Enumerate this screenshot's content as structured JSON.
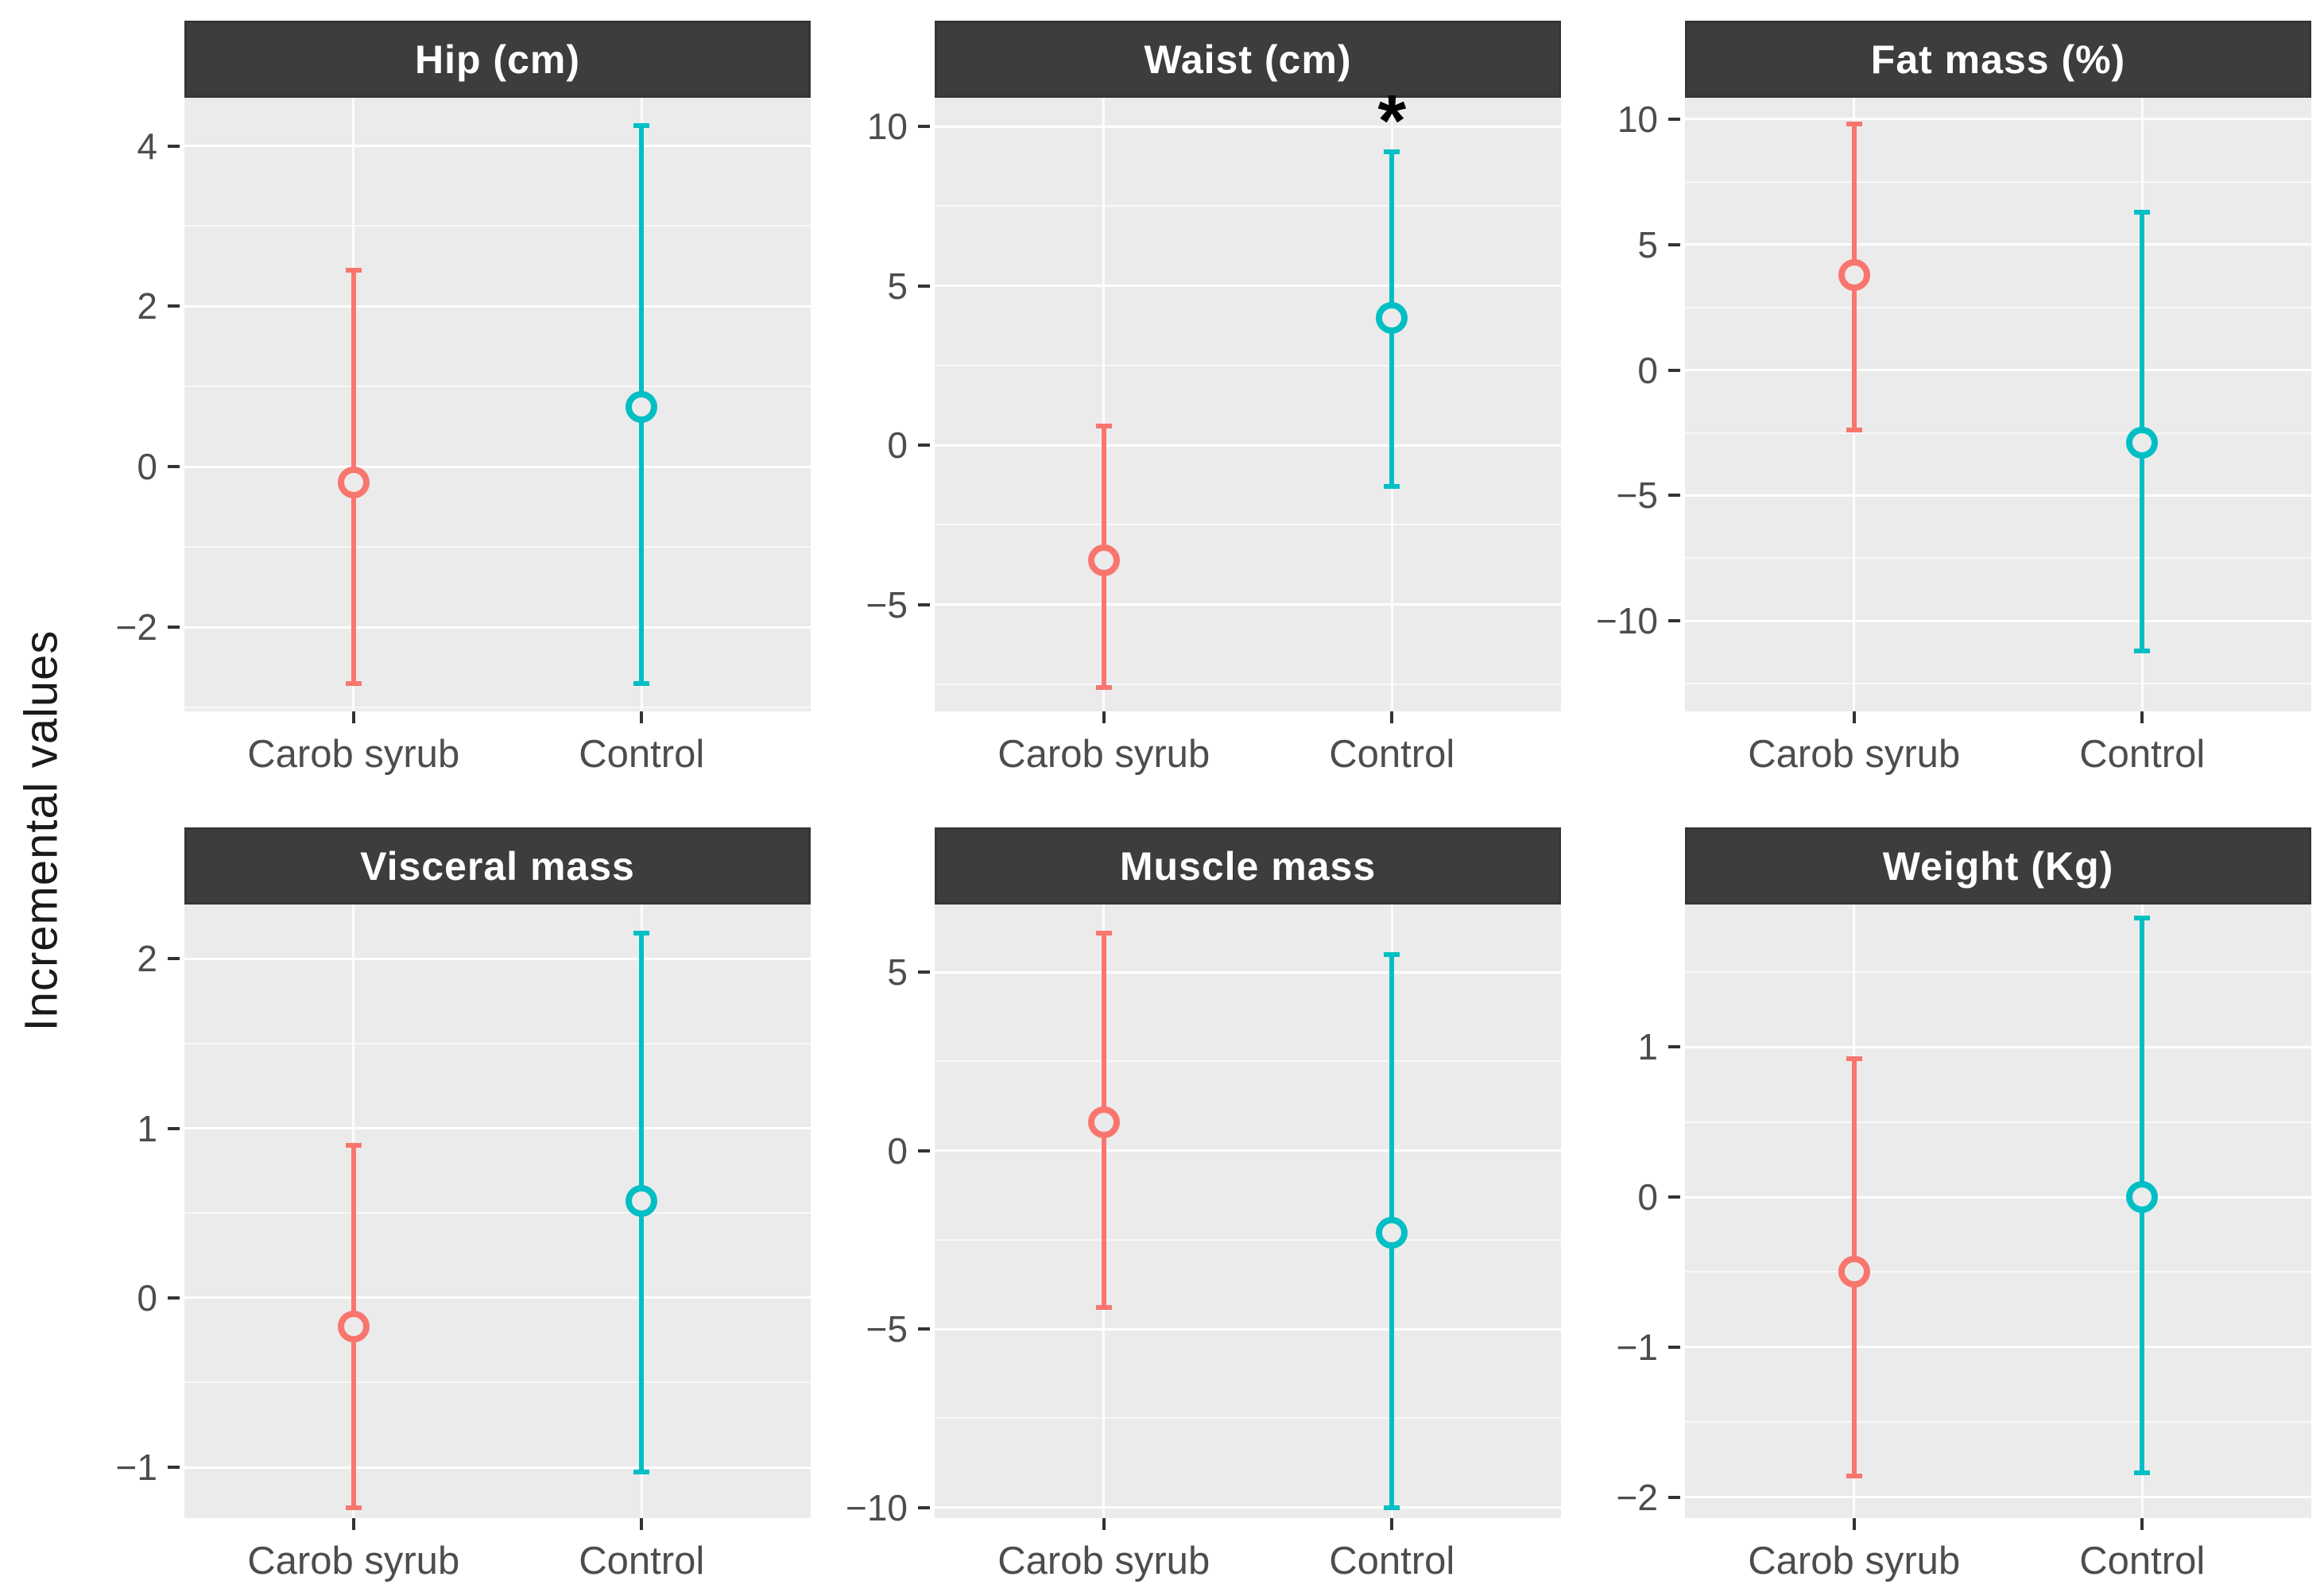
{
  "figure": {
    "ylabel": "Incremental values",
    "x_categories": [
      "Carob syrub",
      "Control"
    ],
    "colors": {
      "carob_syrub": "#F8766D",
      "control": "#00BFC4",
      "strip_bg": "#3D3D3D",
      "strip_text": "#FFFFFF",
      "panel_bg": "#EBEBEB",
      "grid": "#FFFFFF",
      "axis_text": "#4D4D4D",
      "tick_mark": "#333333",
      "annotation": "#000000"
    }
  },
  "chart_data": {
    "type": "pointrange",
    "title": "",
    "ylabel": "Incremental values",
    "categories": [
      "Carob syrub",
      "Control"
    ],
    "legend": "none",
    "grid": "on",
    "series_colors": {
      "Carob syrub": "#F8766D",
      "Control": "#00BFC4"
    },
    "facets": [
      {
        "title": "Hip (cm)",
        "ylim": [
          -3.05,
          4.6
        ],
        "yticks": [
          4,
          2,
          0,
          -2
        ],
        "points": [
          {
            "group": "Carob syrub",
            "y": -0.2,
            "ymin": -2.7,
            "ymax": 2.45
          },
          {
            "group": "Control",
            "y": 0.75,
            "ymin": -2.7,
            "ymax": 4.25
          }
        ],
        "annotation": null
      },
      {
        "title": "Waist (cm)",
        "ylim": [
          -8.35,
          10.9
        ],
        "yticks": [
          10,
          5,
          0,
          -5
        ],
        "points": [
          {
            "group": "Carob syrub",
            "y": -3.6,
            "ymin": -7.6,
            "ymax": 0.6
          },
          {
            "group": "Control",
            "y": 4.0,
            "ymin": -1.3,
            "ymax": 9.2
          }
        ],
        "annotation": {
          "text": "*",
          "group": "Control",
          "y": 10.35
        }
      },
      {
        "title": "Fat mass (%)",
        "ylim": [
          -13.6,
          10.85
        ],
        "yticks": [
          10,
          5,
          0,
          -5,
          -10
        ],
        "points": [
          {
            "group": "Carob syrub",
            "y": 3.8,
            "ymin": -2.4,
            "ymax": 9.8
          },
          {
            "group": "Control",
            "y": -2.9,
            "ymin": -11.2,
            "ymax": 6.3
          }
        ],
        "annotation": null
      },
      {
        "title": "Visceral mass",
        "ylim": [
          -1.3,
          2.32
        ],
        "yticks": [
          2,
          1,
          0,
          -1
        ],
        "points": [
          {
            "group": "Carob syrub",
            "y": -0.17,
            "ymin": -1.24,
            "ymax": 0.9
          },
          {
            "group": "Control",
            "y": 0.57,
            "ymin": -1.03,
            "ymax": 2.15
          }
        ],
        "annotation": null
      },
      {
        "title": "Muscle mass",
        "ylim": [
          -10.3,
          6.9
        ],
        "yticks": [
          5,
          0,
          -5,
          -10
        ],
        "points": [
          {
            "group": "Carob syrub",
            "y": 0.8,
            "ymin": -4.4,
            "ymax": 6.1
          },
          {
            "group": "Control",
            "y": -2.3,
            "ymin": -10.0,
            "ymax": 5.5
          }
        ],
        "annotation": null
      },
      {
        "title": "Weight (Kg)",
        "ylim": [
          -2.14,
          1.95
        ],
        "yticks": [
          1,
          0,
          -1,
          -2
        ],
        "points": [
          {
            "group": "Carob syrub",
            "y": -0.5,
            "ymin": -1.86,
            "ymax": 0.92
          },
          {
            "group": "Control",
            "y": 0.0,
            "ymin": -1.84,
            "ymax": 1.86
          }
        ],
        "annotation": null
      }
    ]
  }
}
